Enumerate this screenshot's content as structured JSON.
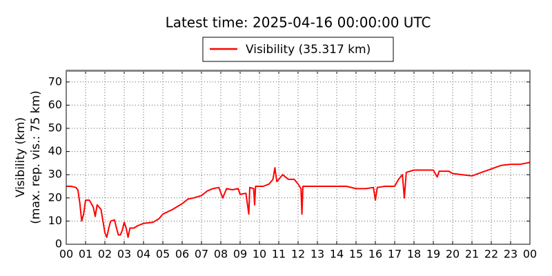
{
  "chart_data": {
    "type": "line",
    "title": "Latest time: 2025-04-16 00:00:00 UTC",
    "ylabel": [
      "Visibility (km)",
      "(max. rep. vis.: 75 km)"
    ],
    "grid": true,
    "legend": "top",
    "xlim": [
      0,
      24
    ],
    "ylim": [
      0,
      75
    ],
    "yticks": [
      0,
      10,
      20,
      30,
      40,
      50,
      60,
      70
    ],
    "xticks": [
      {
        "value": 0,
        "label": "00"
      },
      {
        "value": 1,
        "label": "01"
      },
      {
        "value": 2,
        "label": "02"
      },
      {
        "value": 3,
        "label": "03"
      },
      {
        "value": 4,
        "label": "04"
      },
      {
        "value": 5,
        "label": "05"
      },
      {
        "value": 6,
        "label": "06"
      },
      {
        "value": 7,
        "label": "07"
      },
      {
        "value": 8,
        "label": "08"
      },
      {
        "value": 9,
        "label": "09"
      },
      {
        "value": 10,
        "label": "10"
      },
      {
        "value": 11,
        "label": "11"
      },
      {
        "value": 12,
        "label": "12"
      },
      {
        "value": 13,
        "label": "13"
      },
      {
        "value": 14,
        "label": "14"
      },
      {
        "value": 15,
        "label": "15"
      },
      {
        "value": 16,
        "label": "16"
      },
      {
        "value": 17,
        "label": "17"
      },
      {
        "value": 18,
        "label": "18"
      },
      {
        "value": 19,
        "label": "19"
      },
      {
        "value": 20,
        "label": "20"
      },
      {
        "value": 21,
        "label": "21"
      },
      {
        "value": 22,
        "label": "22"
      },
      {
        "value": 23,
        "label": "23"
      },
      {
        "value": 24,
        "label": "00"
      }
    ],
    "x": [
      0,
      0.25,
      0.5,
      0.6,
      0.7,
      0.8,
      0.9,
      1.0,
      1.2,
      1.4,
      1.5,
      1.6,
      1.8,
      1.9,
      2.0,
      2.1,
      2.2,
      2.3,
      2.5,
      2.6,
      2.7,
      2.8,
      2.9,
      3.0,
      3.1,
      3.2,
      3.3,
      3.5,
      3.7,
      4.0,
      4.5,
      4.8,
      5.0,
      5.5,
      6.0,
      6.3,
      6.6,
      7.0,
      7.3,
      7.6,
      7.9,
      8.1,
      8.3,
      8.6,
      8.9,
      9.0,
      9.3,
      9.45,
      9.5,
      9.7,
      9.75,
      9.8,
      10.2,
      10.5,
      10.7,
      10.8,
      10.9,
      11.2,
      11.5,
      11.8,
      12.0,
      12.15,
      12.2,
      12.25,
      12.5,
      13,
      13.5,
      14,
      14.5,
      15,
      15.5,
      15.9,
      16.0,
      16.1,
      16.5,
      17,
      17.2,
      17.4,
      17.5,
      17.6,
      18,
      18.5,
      19,
      19.2,
      19.3,
      19.8,
      20,
      20.5,
      21,
      21.5,
      22,
      22.5,
      23,
      23.5,
      24
    ],
    "series": [
      {
        "name": "Visibility (35.317 km)",
        "color": "#ff0000",
        "values": [
          25,
          25,
          24.5,
          23.5,
          18,
          10,
          13,
          19,
          19,
          16,
          12,
          17,
          15,
          10,
          5,
          3,
          7,
          10,
          10.5,
          7,
          4,
          4,
          6,
          9.5,
          7,
          3,
          7,
          7,
          8,
          9,
          9.5,
          11,
          13,
          15,
          17.5,
          19.5,
          20,
          21,
          23,
          24,
          24.5,
          20,
          24,
          23.5,
          24,
          21.5,
          22,
          13,
          24.5,
          24,
          17,
          25,
          25,
          26,
          28,
          33,
          27,
          30,
          28,
          28,
          26,
          24,
          13,
          25,
          25,
          25,
          25,
          25,
          25,
          24,
          24,
          24.5,
          19,
          24.5,
          25,
          25,
          28,
          30,
          20,
          31,
          32,
          32,
          32,
          29,
          31.5,
          31.5,
          30.5,
          30,
          29.5,
          31,
          32.5,
          34,
          34.5,
          34.5,
          35.3
        ]
      }
    ]
  }
}
